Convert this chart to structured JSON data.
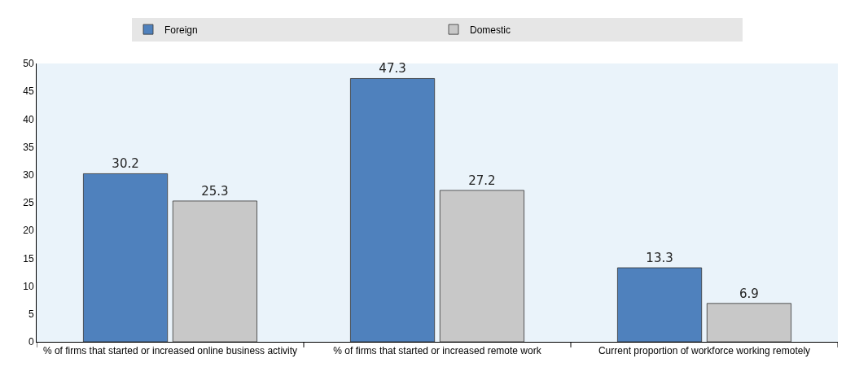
{
  "chart_data": {
    "type": "bar",
    "categories": [
      "% of firms that started or increased online business activity",
      "% of firms that started or increased remote work",
      "Current proportion of workforce working remotely"
    ],
    "series": [
      {
        "name": "Foreign",
        "color": "#4f81bd",
        "values": [
          30.2,
          47.3,
          13.3
        ]
      },
      {
        "name": "Domestic",
        "color": "#c8c8c8",
        "values": [
          25.3,
          27.2,
          6.9
        ]
      }
    ],
    "ylim": [
      0,
      50
    ],
    "yticks": [
      0,
      5,
      10,
      15,
      20,
      25,
      30,
      35,
      40,
      45,
      50
    ],
    "grid": false,
    "legend": "top",
    "data_labels": true
  }
}
